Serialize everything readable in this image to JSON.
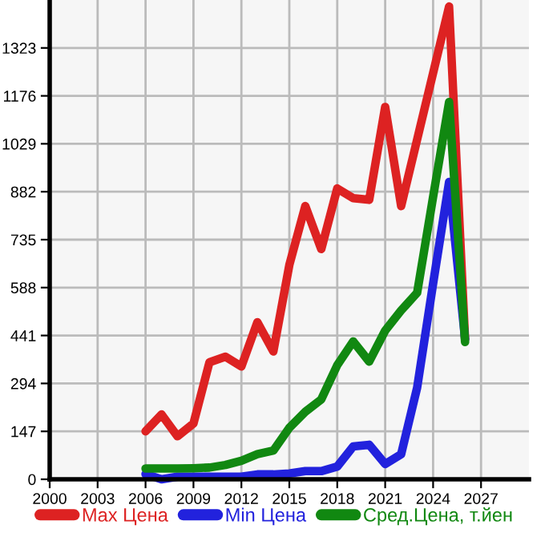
{
  "chart_data": {
    "type": "line",
    "x": [
      2006,
      2007,
      2008,
      2009,
      2010,
      2011,
      2012,
      2013,
      2014,
      2015,
      2016,
      2017,
      2018,
      2019,
      2020,
      2021,
      2022,
      2023,
      2024,
      2025,
      2026
    ],
    "series": [
      {
        "name": "Max Цена",
        "color": "#dd2222",
        "values": [
          147,
          199,
          132,
          171,
          359,
          376,
          346,
          482,
          392,
          657,
          838,
          706,
          892,
          862,
          857,
          1142,
          838,
          1042,
          1246,
          1450,
          430
        ]
      },
      {
        "name": "Min Цена",
        "color": "#2222dd",
        "values": [
          16,
          0,
          8,
          8,
          8,
          8,
          8,
          15,
          15,
          18,
          25,
          25,
          39,
          101,
          106,
          47,
          77,
          281,
          600,
          912,
          430
        ]
      },
      {
        "name": "Сред.Цена, т.йен",
        "color": "#118811",
        "values": [
          33,
          33,
          33,
          34,
          36,
          44,
          57,
          77,
          88,
          158,
          207,
          245,
          350,
          423,
          361,
          456,
          518,
          572,
          866,
          1157,
          421
        ]
      }
    ],
    "xlim": [
      2000,
      2030
    ],
    "ylim": [
      0,
      1470
    ],
    "xticks": [
      2000,
      2003,
      2006,
      2009,
      2012,
      2015,
      2018,
      2021,
      2024,
      2027
    ],
    "yticks": [
      0,
      147,
      294,
      441,
      588,
      735,
      882,
      1029,
      1176,
      1323
    ],
    "grid": true,
    "legend": "bottom",
    "marker": "none",
    "line_style": "solid"
  }
}
